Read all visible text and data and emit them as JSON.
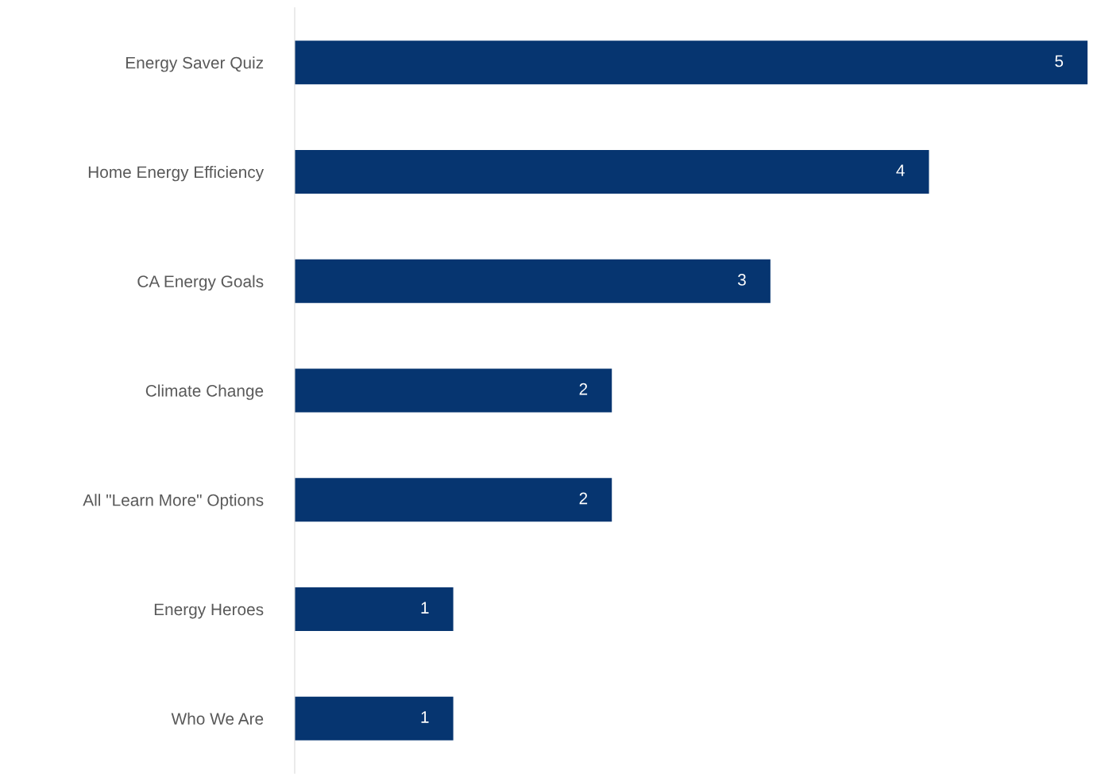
{
  "chart_data": {
    "type": "bar",
    "orientation": "horizontal",
    "categories": [
      "Energy Saver Quiz",
      "Home Energy Efficiency",
      "CA Energy Goals",
      "Climate Change",
      "All \"Learn More\" Options",
      "Energy Heroes",
      "Who We Are"
    ],
    "values": [
      5,
      4,
      3,
      2,
      2,
      1,
      1
    ],
    "color": "#063570",
    "data_labels": true,
    "grid": false,
    "legend": false
  }
}
